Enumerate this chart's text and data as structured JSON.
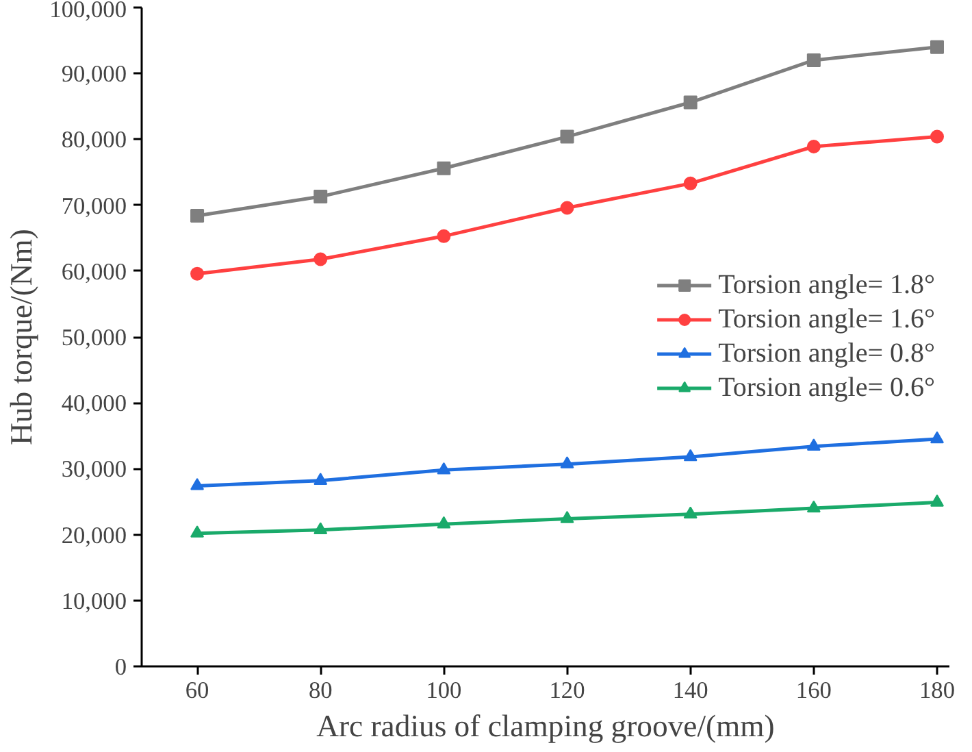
{
  "chart_data": {
    "type": "line",
    "xlabel": "Arc radius of clamping groove/(mm)",
    "ylabel": "Hub torque/(Nm)",
    "x": [
      60,
      80,
      100,
      120,
      140,
      160,
      180
    ],
    "xlim": [
      51,
      182
    ],
    "xticks": [
      60,
      80,
      100,
      120,
      140,
      160,
      180
    ],
    "ylim": [
      0,
      100000
    ],
    "yticks": [
      {
        "value": 0,
        "label": "0"
      },
      {
        "value": 10000,
        "label": "10,000"
      },
      {
        "value": 20000,
        "label": "20,000"
      },
      {
        "value": 30000,
        "label": "30,000"
      },
      {
        "value": 40000,
        "label": "40,000"
      },
      {
        "value": 50000,
        "label": "50,000"
      },
      {
        "value": 60000,
        "label": "60,000"
      },
      {
        "value": 70000,
        "label": "70,000"
      },
      {
        "value": 80000,
        "label": "80,000"
      },
      {
        "value": 90000,
        "label": "90,000"
      },
      {
        "value": 100000,
        "label": "100,000"
      }
    ],
    "grid": false,
    "legend": "right",
    "line_style": "solid",
    "series": [
      {
        "name": "Torsion angle= 1.8°",
        "color": "#7f7f7f",
        "marker": "square",
        "values": [
          68400,
          71300,
          75600,
          80400,
          85600,
          92000,
          94000
        ]
      },
      {
        "name": "Torsion angle= 1.6°",
        "color": "#ff4040",
        "marker": "circle",
        "values": [
          59600,
          61800,
          65300,
          69600,
          73300,
          78900,
          80400
        ]
      },
      {
        "name": "Torsion angle= 0.8°",
        "color": "#1f6fe0",
        "marker": "triangle",
        "values": [
          27400,
          28200,
          29800,
          30700,
          31800,
          33400,
          34500
        ]
      },
      {
        "name": "Torsion angle= 0.6°",
        "color": "#1aaa6a",
        "marker": "triangle",
        "values": [
          20200,
          20700,
          21600,
          22400,
          23100,
          24000,
          24900
        ]
      }
    ]
  }
}
